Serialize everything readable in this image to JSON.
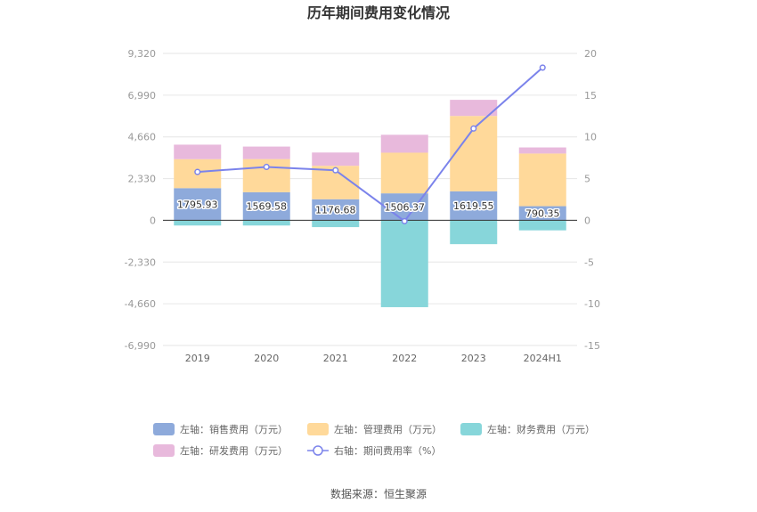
{
  "chart_data": {
    "type": "bar",
    "title": "历年期间费用变化情况",
    "categories": [
      "2019",
      "2020",
      "2021",
      "2022",
      "2023",
      "2024H1"
    ],
    "left_axis": {
      "ticks": [
        "9,320",
        "6,990",
        "4,660",
        "2,330",
        "0",
        "-2,330",
        "-4,660",
        "-6,990"
      ],
      "ylim": [
        -6990,
        9320
      ]
    },
    "right_axis": {
      "ticks": [
        "20",
        "15",
        "10",
        "5",
        "0",
        "-5",
        "-10",
        "-15"
      ],
      "ylim": [
        -15,
        20
      ]
    },
    "series": [
      {
        "name": "左轴：销售费用（万元）",
        "axis": "left",
        "stack": true,
        "color": "#8eaadb",
        "values": [
          1795.93,
          1569.58,
          1176.68,
          1506.37,
          1619.55,
          790.35
        ],
        "labels": [
          "1795.93",
          "1569.58",
          "1176.68",
          "1506.37",
          "1619.55",
          "790.35"
        ]
      },
      {
        "name": "左轴：管理费用（万元）",
        "axis": "left",
        "stack": true,
        "color": "#ffd99a",
        "values": [
          1620,
          1850,
          1870,
          2270,
          4210,
          2940
        ]
      },
      {
        "name": "左轴：财务费用（万元）",
        "axis": "left",
        "stack": true,
        "color": "#87d6da",
        "values": [
          -290,
          -290,
          -380,
          -4850,
          -1330,
          -560
        ]
      },
      {
        "name": "左轴：研发费用（万元）",
        "axis": "left",
        "stack": true,
        "color": "#e8b9dc",
        "values": [
          810,
          700,
          740,
          1000,
          900,
          340
        ]
      },
      {
        "name": "右轴：期间费用率（%）",
        "axis": "right",
        "type": "line",
        "color": "#7b83eb",
        "values": [
          5.8,
          6.4,
          6.0,
          -0.1,
          11.0,
          18.3
        ]
      }
    ],
    "legend_placement": "bottom",
    "grid": true
  },
  "source": "数据来源：恒生聚源"
}
